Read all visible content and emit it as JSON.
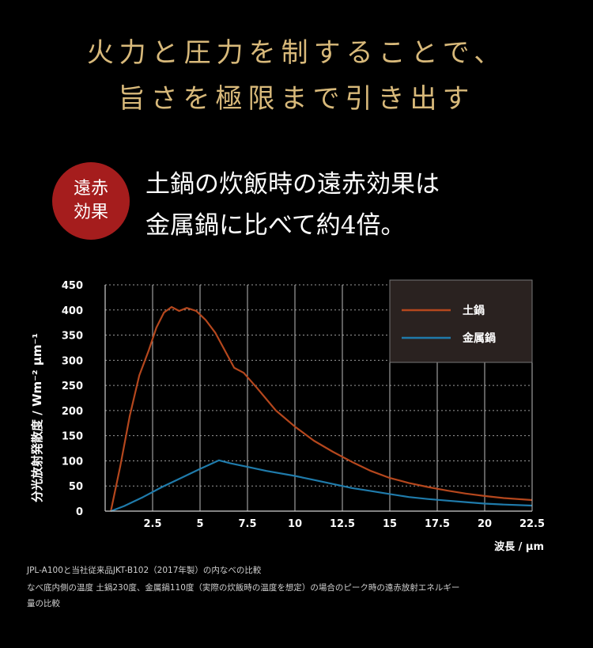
{
  "header": {
    "line1": "火力と圧力を制することで、",
    "line2": "旨さを極限まで引き出す"
  },
  "badge": {
    "line1": "遠赤",
    "line2": "効果"
  },
  "lead": {
    "line1": "土鍋の炊飯時の遠赤効果は",
    "line2": "金属鍋に比べて約4倍。"
  },
  "colors": {
    "gold": "#d8b97a",
    "badge_red": "#a51d1d",
    "donabe": "#b5471d",
    "metal": "#1f7bab"
  },
  "chart_data": {
    "type": "line",
    "ylabel": "分光放射発散度 / Wm⁻² μm⁻¹",
    "xlabel": "波長 / μm",
    "xlim": [
      0,
      22.5
    ],
    "ylim": [
      0,
      450
    ],
    "x_ticks": [
      "2.5",
      "5",
      "7.5",
      "10",
      "12.5",
      "15",
      "17.5",
      "20",
      "22.5"
    ],
    "y_ticks": [
      "0",
      "50",
      "100",
      "150",
      "200",
      "250",
      "300",
      "350",
      "400",
      "450"
    ],
    "grid": true,
    "legend_position": "top-right",
    "series": [
      {
        "name": "土鍋",
        "color": "#b5471d",
        "points": [
          [
            0.3,
            0
          ],
          [
            0.8,
            90
          ],
          [
            1.3,
            190
          ],
          [
            1.8,
            270
          ],
          [
            2.3,
            320
          ],
          [
            2.7,
            365
          ],
          [
            3.1,
            395
          ],
          [
            3.5,
            406
          ],
          [
            3.9,
            398
          ],
          [
            4.3,
            404
          ],
          [
            4.8,
            398
          ],
          [
            5.3,
            380
          ],
          [
            5.8,
            355
          ],
          [
            6.3,
            320
          ],
          [
            6.8,
            285
          ],
          [
            7.3,
            275
          ],
          [
            8,
            245
          ],
          [
            9,
            200
          ],
          [
            10,
            168
          ],
          [
            11,
            140
          ],
          [
            12,
            118
          ],
          [
            13,
            98
          ],
          [
            14,
            80
          ],
          [
            15,
            66
          ],
          [
            16,
            56
          ],
          [
            17,
            48
          ],
          [
            18,
            41
          ],
          [
            19,
            35
          ],
          [
            20,
            30
          ],
          [
            21,
            26
          ],
          [
            22.5,
            22
          ]
        ]
      },
      {
        "name": "金属鍋",
        "color": "#1f7bab",
        "points": [
          [
            0.3,
            0
          ],
          [
            1,
            10
          ],
          [
            2,
            28
          ],
          [
            3,
            48
          ],
          [
            4,
            66
          ],
          [
            5,
            84
          ],
          [
            6,
            101
          ],
          [
            6.6,
            95
          ],
          [
            7.5,
            88
          ],
          [
            8.5,
            80
          ],
          [
            10,
            70
          ],
          [
            11,
            62
          ],
          [
            12,
            54
          ],
          [
            13,
            46
          ],
          [
            14,
            40
          ],
          [
            15,
            34
          ],
          [
            16,
            28
          ],
          [
            17,
            24
          ],
          [
            18,
            21
          ],
          [
            19,
            18
          ],
          [
            20,
            15
          ],
          [
            21,
            13
          ],
          [
            22.5,
            11
          ]
        ]
      }
    ]
  },
  "footnote": {
    "line1": "JPL-A100と当社従来品JKT-B102（2017年製）の内なべの比較",
    "line2": "なべ底内側の温度 土鍋230度、金属鍋110度（実際の炊飯時の温度を想定）の場合のピーク時の遠赤放射エネルギー",
    "line3": "量の比較"
  }
}
